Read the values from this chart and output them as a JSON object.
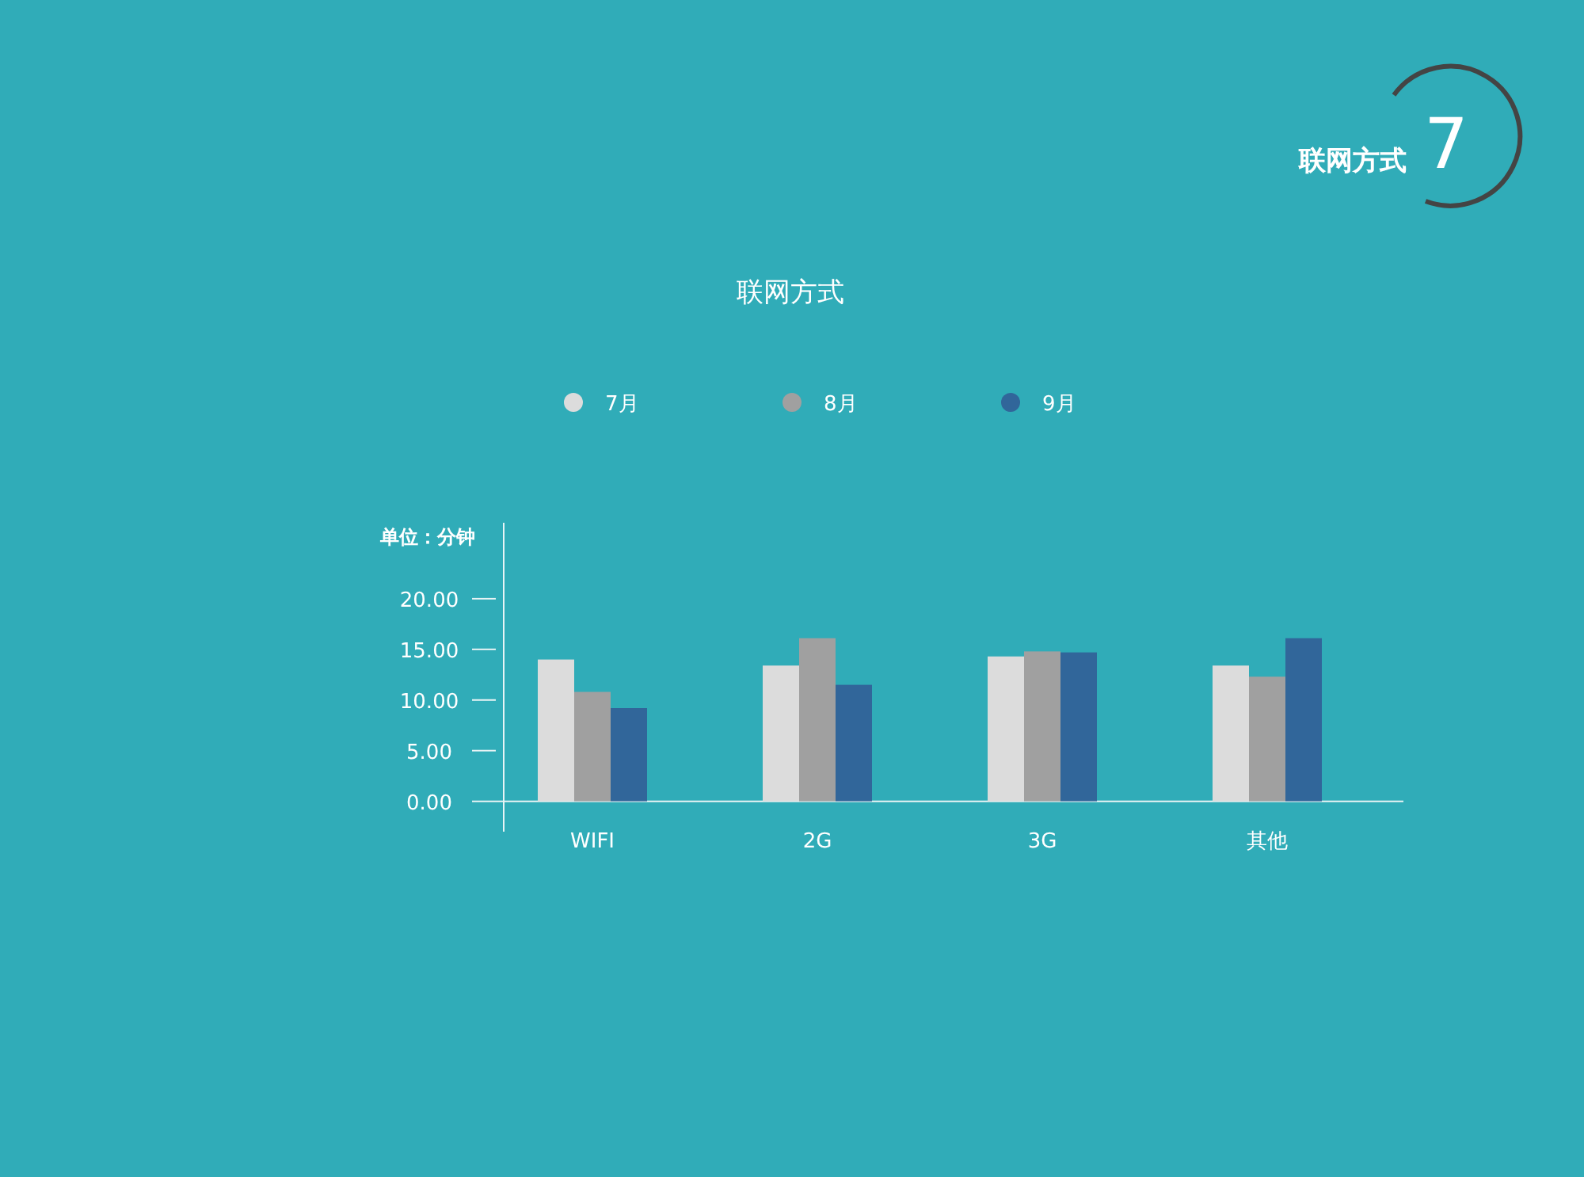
{
  "chart_data": {
    "type": "bar",
    "title": "联网方式",
    "ylabel": "单位：分钟",
    "annotations": [
      "联网方式",
      "7"
    ],
    "categories": [
      "WIFI",
      "2G",
      "3G",
      "其他"
    ],
    "series": [
      {
        "name": "7月",
        "color": "#dcdcdc",
        "values": [
          14.0,
          13.4,
          14.3,
          13.4
        ]
      },
      {
        "name": "8月",
        "color": "#a0a0a0",
        "values": [
          10.8,
          16.1,
          14.8,
          12.3
        ]
      },
      {
        "name": "9月",
        "color": "#31669a",
        "values": [
          9.2,
          11.5,
          14.7,
          16.1
        ]
      }
    ],
    "ylim": [
      -3,
      27.5
    ],
    "yticks": [
      {
        "value": 0,
        "label": "0.00"
      },
      {
        "value": 5,
        "label": "5.00"
      },
      {
        "value": 10,
        "label": "10.00"
      },
      {
        "value": 15,
        "label": "15.00"
      },
      {
        "value": 20,
        "label": "20.00"
      }
    ],
    "legend": "top"
  }
}
